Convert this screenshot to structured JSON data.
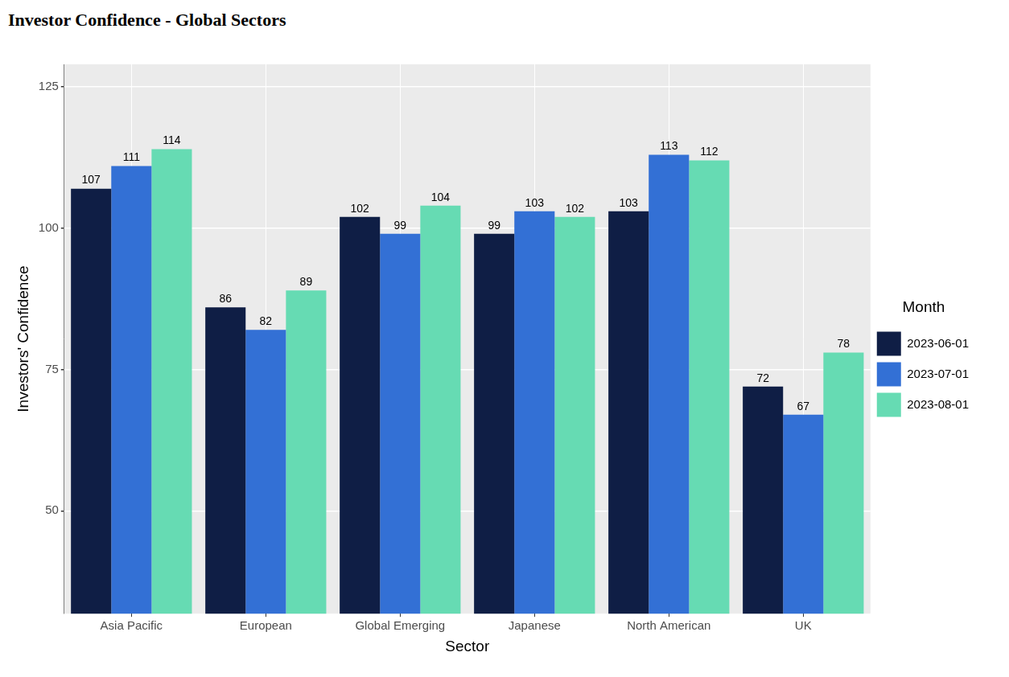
{
  "chart_data": {
    "type": "bar",
    "title": "Investor Confidence - Global Sectors",
    "x_label": "Sector",
    "y_label": "Investors' Confidence",
    "legend_title": "Month",
    "categories": [
      "Asia Pacific",
      "European",
      "Global Emerging",
      "Japanese",
      "North American",
      "UK"
    ],
    "series": [
      {
        "name": "2023-06-01",
        "color": "#0F1E45",
        "values": [
          107,
          86,
          102,
          99,
          103,
          72
        ]
      },
      {
        "name": "2023-07-01",
        "color": "#3370D5",
        "values": [
          111,
          82,
          99,
          103,
          113,
          67
        ]
      },
      {
        "name": "2023-08-01",
        "color": "#66DBB3",
        "values": [
          114,
          89,
          104,
          102,
          112,
          78
        ]
      }
    ],
    "ylim": [
      31.8,
      129
    ],
    "yticks": [
      50,
      75,
      100,
      125
    ],
    "grid": true,
    "legend": "right",
    "data_labels": true
  }
}
